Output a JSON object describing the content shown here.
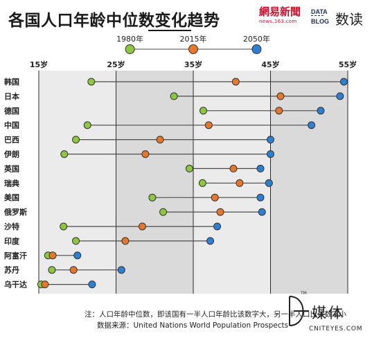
{
  "header": {
    "title": "各国人口年龄中位数变化趋势",
    "brand_netease_cn": "網易新聞",
    "brand_netease_url": "news.163.com",
    "brand_datablog_line1": "DATA",
    "brand_datablog_line2": "BLOG",
    "brand_shudu": "数读"
  },
  "footer": {
    "note": "注：人口年龄中位数，即该国有一半人口年龄比该数字大，另一半人口比该数字小",
    "source": "数据来源：United Nations World Population Prospects"
  },
  "watermark": {
    "tm": "TM",
    "word": "媒体",
    "site": "CNITEYES.COM"
  },
  "colors": {
    "y1980": "#8dc63f",
    "y2015": "#e8772e",
    "y2050": "#2d7fd1",
    "band_light": "#ebebeb",
    "band_dark": "#dadada",
    "connector": "#4a4a4a"
  },
  "chart_data": {
    "type": "dumbbell",
    "title": "各国人口年龄中位数变化趋势",
    "xlabel": "",
    "ylabel": "",
    "x_ticks": [
      "15岁",
      "25岁",
      "35岁",
      "45岁",
      "55岁"
    ],
    "x_tick_values": [
      15,
      25,
      35,
      45,
      55
    ],
    "xlim": [
      15,
      55
    ],
    "grid": true,
    "legend_position": "top",
    "series": [
      {
        "name": "1980年",
        "color": "#8dc63f"
      },
      {
        "name": "2015年",
        "color": "#e8772e"
      },
      {
        "name": "2050年",
        "color": "#2d7fd1"
      }
    ],
    "categories": [
      "韩国",
      "日本",
      "德国",
      "中国",
      "巴西",
      "伊朗",
      "英国",
      "瑞典",
      "美国",
      "俄罗斯",
      "沙特",
      "印度",
      "阿富汗",
      "苏丹",
      "乌干达"
    ],
    "values_1980": [
      21.8,
      32.5,
      36.3,
      21.3,
      19.8,
      18.3,
      34.5,
      36.2,
      29.7,
      31.1,
      18.2,
      19.8,
      16.2,
      16.7,
      15.3
    ],
    "values_2015": [
      40.5,
      46.3,
      46.1,
      37.0,
      30.7,
      28.8,
      40.2,
      41.0,
      37.8,
      38.5,
      28.4,
      26.2,
      16.8,
      19.5,
      15.8
    ],
    "values_2050": [
      54.5,
      54.0,
      51.5,
      50.3,
      45.0,
      45.0,
      43.7,
      44.8,
      43.7,
      43.9,
      38.1,
      37.2,
      20.0,
      25.7,
      21.9
    ]
  }
}
